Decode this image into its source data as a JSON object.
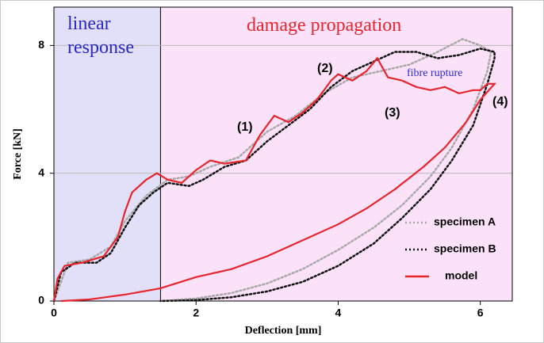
{
  "chart_data": {
    "type": "line",
    "xlabel": "Deflection [mm]",
    "ylabel": "Force [kN]",
    "xlim": [
      0,
      6.45
    ],
    "ylim": [
      0,
      9.2
    ],
    "xticks": [
      0,
      2,
      4,
      6
    ],
    "yticks": [
      0,
      4,
      8
    ],
    "grid": true,
    "legend": "lower right",
    "regions": [
      {
        "label": "linear response",
        "xlim": [
          0,
          1.5
        ],
        "color": "#e2e0f8"
      },
      {
        "label": "damage propagation",
        "xlim": [
          1.5,
          6.45
        ],
        "color": "#fbe2f8"
      }
    ],
    "annotations": [
      "(1)",
      "(2)",
      "(3)",
      "(4)",
      "fibre rupture"
    ],
    "series": [
      {
        "name": "specimen A",
        "color": "#a8a8a8",
        "style": "dotted",
        "x": [
          0,
          0.2,
          0.5,
          0.8,
          1.0,
          1.3,
          1.6,
          1.9,
          2.2,
          2.6,
          3.0,
          3.4,
          3.8,
          4.2,
          4.6,
          5.0,
          5.4,
          5.75,
          6.0,
          6.15,
          6.1,
          5.9,
          5.6,
          5.3,
          4.9,
          4.5,
          4.0,
          3.5,
          3.0,
          2.5,
          2.0,
          1.5
        ],
        "values": [
          0,
          1.2,
          1.3,
          1.7,
          2.5,
          3.3,
          3.8,
          3.9,
          4.2,
          4.5,
          5.3,
          5.8,
          6.5,
          7.0,
          7.2,
          7.4,
          7.8,
          8.2,
          8.0,
          7.8,
          7.2,
          6.0,
          4.8,
          3.9,
          3.0,
          2.3,
          1.6,
          1.0,
          0.55,
          0.25,
          0.08,
          0
        ]
      },
      {
        "name": "specimen B",
        "color": "#111111",
        "style": "dotted",
        "x": [
          0,
          0.1,
          0.3,
          0.6,
          0.8,
          1.0,
          1.2,
          1.4,
          1.6,
          1.9,
          2.1,
          2.4,
          2.7,
          3.0,
          3.3,
          3.6,
          3.9,
          4.2,
          4.5,
          4.8,
          5.1,
          5.4,
          5.7,
          6.0,
          6.2,
          6.2,
          6.1,
          5.9,
          5.6,
          5.3,
          4.9,
          4.5,
          4.0,
          3.5,
          3.0,
          2.5,
          2.0,
          1.5
        ],
        "values": [
          0,
          0.9,
          1.2,
          1.2,
          1.5,
          2.3,
          3.0,
          3.4,
          3.7,
          3.6,
          3.8,
          4.2,
          4.4,
          5.0,
          5.5,
          6.0,
          6.7,
          7.2,
          7.5,
          7.8,
          7.8,
          7.6,
          7.7,
          7.9,
          7.8,
          7.6,
          6.8,
          5.5,
          4.4,
          3.5,
          2.6,
          1.8,
          1.1,
          0.6,
          0.3,
          0.12,
          0.03,
          0
        ]
      },
      {
        "name": "model",
        "color": "#e8242c",
        "style": "solid",
        "x": [
          0,
          0.05,
          0.15,
          0.4,
          0.7,
          0.9,
          1.0,
          1.1,
          1.3,
          1.45,
          1.6,
          1.8,
          2.0,
          2.2,
          2.4,
          2.7,
          2.9,
          3.1,
          3.3,
          3.5,
          3.7,
          3.9,
          4.0,
          4.2,
          4.4,
          4.55,
          4.7,
          4.9,
          5.1,
          5.3,
          5.5,
          5.7,
          5.9,
          6.0,
          6.1,
          6.2,
          6.0,
          5.8,
          5.5,
          5.2,
          4.8,
          4.4,
          4.0,
          3.5,
          3.0,
          2.5,
          2.0,
          1.5,
          1.0,
          0.5,
          0.1
        ],
        "values": [
          0,
          0.7,
          1.1,
          1.2,
          1.4,
          2.0,
          2.8,
          3.4,
          3.8,
          4.0,
          3.8,
          3.7,
          4.1,
          4.4,
          4.3,
          4.4,
          5.2,
          5.8,
          5.6,
          5.9,
          6.3,
          6.9,
          7.1,
          6.9,
          7.2,
          7.6,
          7.0,
          6.9,
          6.7,
          6.6,
          6.7,
          6.5,
          6.6,
          6.6,
          6.8,
          6.8,
          6.3,
          5.6,
          4.8,
          4.2,
          3.5,
          2.9,
          2.4,
          1.9,
          1.4,
          1.0,
          0.75,
          0.4,
          0.2,
          0.05,
          0
        ]
      }
    ]
  }
}
